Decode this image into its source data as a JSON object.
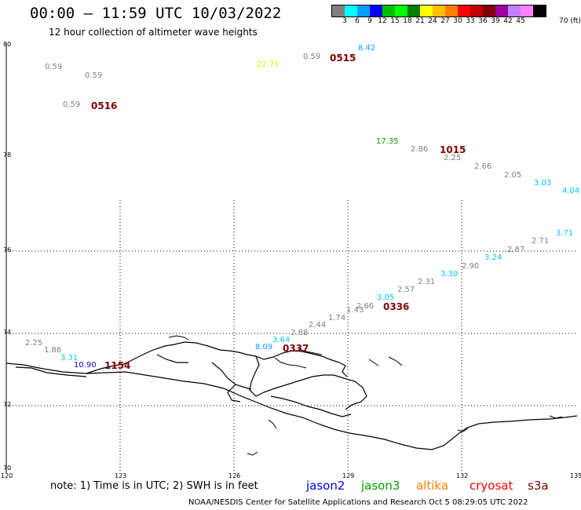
{
  "header": {
    "title": "00:00 – 11:59 UTC 10/03/2022",
    "subtitle": "12 hour collection of altimeter wave heights"
  },
  "colorbar": {
    "unit": "70 (ft)",
    "colors": [
      "#808080",
      "#00ffff",
      "#00a0ff",
      "#0000ff",
      "#00c000",
      "#00ff00",
      "#008000",
      "#ffff00",
      "#ffc000",
      "#ff8000",
      "#ff0000",
      "#c00000",
      "#800000",
      "#a000a0",
      "#c080ff",
      "#ff80ff",
      "#000000"
    ],
    "labels": [
      "3",
      "6",
      "9",
      "12",
      "15",
      "18",
      "21",
      "24",
      "27",
      "30",
      "33",
      "36",
      "39",
      "42",
      "45"
    ]
  },
  "axes": {
    "lat_labels": [
      "80",
      "78",
      "76",
      "74",
      "72",
      "70"
    ],
    "lon_labels": [
      "120",
      "123",
      "126",
      "129",
      "132",
      "135"
    ]
  },
  "observations": [
    {
      "text": "0.59",
      "color": "#808080"
    },
    {
      "text": "0.59",
      "color": "#808080"
    },
    {
      "text": "0.59",
      "color": "#808080"
    },
    {
      "text": "22.71",
      "color": "#e6e600"
    },
    {
      "text": "0.59",
      "color": "#808080"
    },
    {
      "text": "8.42",
      "color": "#00a0ff"
    },
    {
      "text": "17.35",
      "color": "#00a000"
    },
    {
      "text": "2.86",
      "color": "#808080"
    },
    {
      "text": "2.25",
      "color": "#808080"
    },
    {
      "text": "2.66",
      "color": "#808080"
    },
    {
      "text": "2.05",
      "color": "#808080"
    },
    {
      "text": "3.03",
      "color": "#00c8ff"
    },
    {
      "text": "4.04",
      "color": "#00c8ff"
    },
    {
      "text": "3.71",
      "color": "#00c8ff"
    },
    {
      "text": "2.71",
      "color": "#808080"
    },
    {
      "text": "2.87",
      "color": "#808080"
    },
    {
      "text": "3.24",
      "color": "#00c8ff"
    },
    {
      "text": "2.90",
      "color": "#808080"
    },
    {
      "text": "3.30",
      "color": "#00c8ff"
    },
    {
      "text": "2.31",
      "color": "#808080"
    },
    {
      "text": "2.57",
      "color": "#808080"
    },
    {
      "text": "3.05",
      "color": "#00c8ff"
    },
    {
      "text": "2.66",
      "color": "#808080"
    },
    {
      "text": "1.43",
      "color": "#808080"
    },
    {
      "text": "1.74",
      "color": "#808080"
    },
    {
      "text": "2.44",
      "color": "#808080"
    },
    {
      "text": "2.88",
      "color": "#808080"
    },
    {
      "text": "3.64",
      "color": "#00c8ff"
    },
    {
      "text": "8.09",
      "color": "#00a0ff"
    },
    {
      "text": "2.25",
      "color": "#808080"
    },
    {
      "text": "1.86",
      "color": "#808080"
    },
    {
      "text": "3.31",
      "color": "#00c8ff"
    },
    {
      "text": "10.90",
      "color": "#0000c0"
    }
  ],
  "time_labels": [
    "0515",
    "0516",
    "1015",
    "0336",
    "0337",
    "1154"
  ],
  "footer": {
    "note": "note:  1) Time is in UTC;  2) SWH is in feet",
    "satellites": [
      {
        "name": "jason2",
        "color": "#0000ff"
      },
      {
        "name": "jason3",
        "color": "#00a000"
      },
      {
        "name": "altika",
        "color": "#ff8000"
      },
      {
        "name": "cryosat",
        "color": "#ff0000"
      },
      {
        "name": "s3a",
        "color": "#800000"
      }
    ],
    "credit": "NOAA/NESDIS Center for Satellite Applications and Research     Oct  5 08:29:05 UTC 2022"
  }
}
